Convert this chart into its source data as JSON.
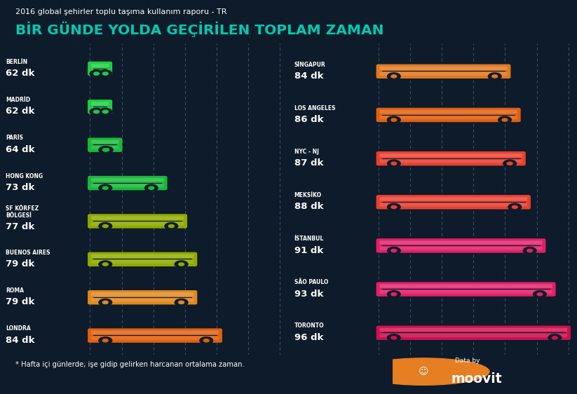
{
  "title_small": "2016 global şehirler toplu taşıma kullanım raporu - TR",
  "title_large": "BİR GÜNDE YOLDA GEÇİRİLEN TOPLAM ZAMAN",
  "subtitle": "* Hafta içi günlerde, işe gidip gelirken harcanan ortalama zaman.",
  "bg_color": "#0d1b2a",
  "teal_color": "#00c9b1",
  "left_cities": [
    {
      "name": "BERLİN",
      "value": 62,
      "label": "62 dk",
      "color": "#1fcc44"
    },
    {
      "name": "MADRİD",
      "value": 62,
      "label": "62 dk",
      "color": "#1fcc44"
    },
    {
      "name": "PARİS",
      "value": 64,
      "label": "64 dk",
      "color": "#1ab83a"
    },
    {
      "name": "HONG KONG",
      "value": 73,
      "label": "73 dk",
      "color": "#1ab83a"
    },
    {
      "name": "SF KÖRFEZ\nBÖLGESİ",
      "value": 77,
      "label": "77 dk",
      "color": "#8faa00"
    },
    {
      "name": "BUENOS AIRES",
      "value": 79,
      "label": "79 dk",
      "color": "#8faa00"
    },
    {
      "name": "ROMA",
      "value": 79,
      "label": "79 dk",
      "color": "#e08820"
    },
    {
      "name": "LONDRA",
      "value": 84,
      "label": "84 dk",
      "color": "#e06010"
    }
  ],
  "right_cities": [
    {
      "name": "SİNGAPUR",
      "value": 84,
      "label": "84 dk",
      "color": "#e07820"
    },
    {
      "name": "LOS ANGELES",
      "value": 86,
      "label": "86 dk",
      "color": "#e06010"
    },
    {
      "name": "NYC - NJ",
      "value": 87,
      "label": "87 dk",
      "color": "#e84030"
    },
    {
      "name": "MEKSİKO",
      "value": 88,
      "label": "88 dk",
      "color": "#e84030"
    },
    {
      "name": "İSTANBUL",
      "value": 91,
      "label": "91 dk",
      "color": "#e0206a"
    },
    {
      "name": "SÃO PAULO",
      "value": 93,
      "label": "93 dk",
      "color": "#e0206a"
    },
    {
      "name": "TORONTO",
      "value": 96,
      "label": "96 dk",
      "color": "#cc1050"
    }
  ],
  "val_min": 58,
  "val_max": 96,
  "n_grid": 6,
  "moovit_orange": "#e67e22",
  "dashed_color": "#3a4e62"
}
